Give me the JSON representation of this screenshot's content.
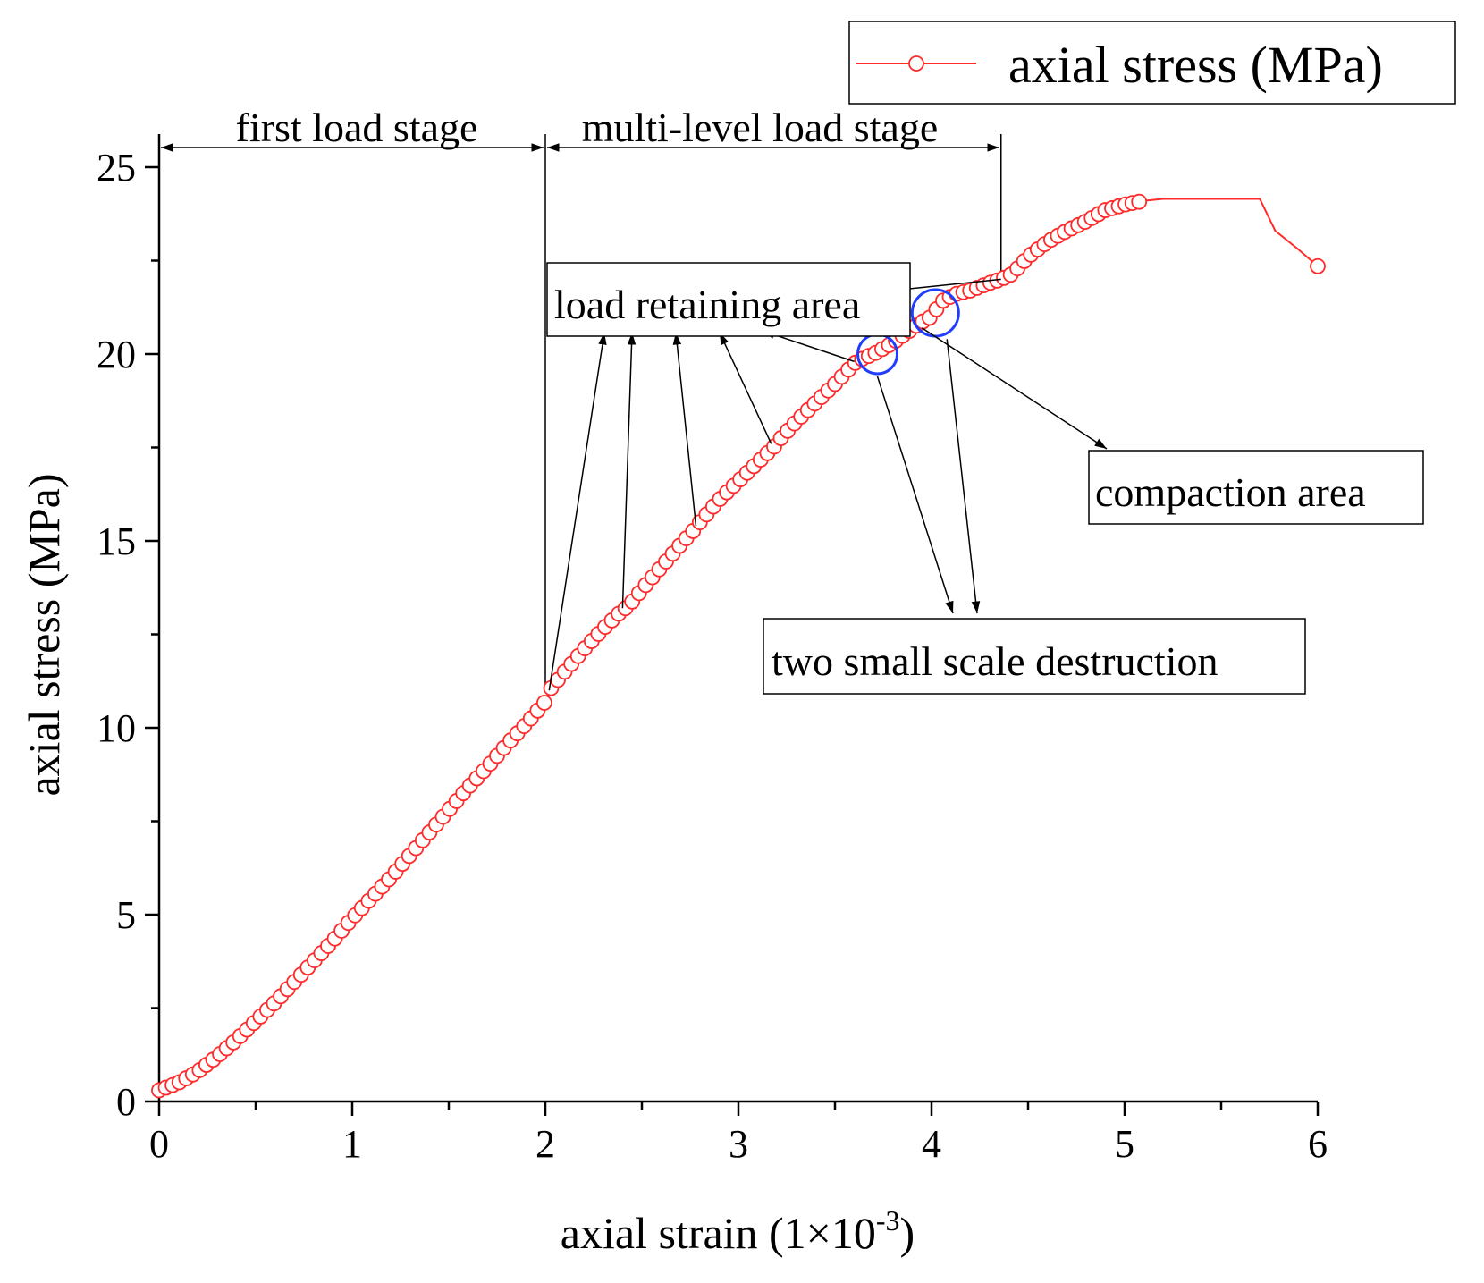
{
  "chart_data": {
    "type": "line",
    "title": "",
    "xlabel": "axial strain (1×10",
    "xlabel_exponent": "-3",
    "xlabel_close": ")",
    "ylabel": "axial stress (MPa)",
    "xlim": [
      0,
      6
    ],
    "ylim": [
      0,
      25
    ],
    "x_ticks": [
      "0",
      "1",
      "2",
      "3",
      "4",
      "5",
      "6"
    ],
    "y_ticks": [
      "0",
      "5",
      "10",
      "15",
      "20",
      "25"
    ],
    "grid": false,
    "legend_position": "top-right",
    "series": [
      {
        "name": "axial stress (MPa)",
        "color": "#ff2a2a",
        "marker": "open-circle",
        "x": [
          0.0,
          0.1,
          0.2,
          0.3,
          0.4,
          0.5,
          0.6,
          0.7,
          0.8,
          0.9,
          1.0,
          1.1,
          1.2,
          1.3,
          1.4,
          1.5,
          1.6,
          1.7,
          1.8,
          1.9,
          2.0,
          2.02,
          2.1,
          2.2,
          2.3,
          2.4,
          2.43,
          2.5,
          2.6,
          2.7,
          2.78,
          2.8,
          2.9,
          3.0,
          3.1,
          3.2,
          3.22,
          3.3,
          3.4,
          3.5,
          3.6,
          3.65,
          3.7,
          3.8,
          3.88,
          3.93,
          4.0,
          4.05,
          4.12,
          4.2,
          4.3,
          4.36,
          4.42,
          4.5,
          4.6,
          4.7,
          4.8,
          4.9,
          5.0,
          5.1,
          5.2,
          5.4,
          5.6,
          5.7,
          5.78,
          5.9,
          6.0
        ],
        "y": [
          0.3,
          0.5,
          0.8,
          1.2,
          1.65,
          2.15,
          2.65,
          3.2,
          3.75,
          4.3,
          4.9,
          5.45,
          6.0,
          6.6,
          7.2,
          7.8,
          8.4,
          8.95,
          9.55,
          10.1,
          10.7,
          11.0,
          11.5,
          12.1,
          12.65,
          13.15,
          13.25,
          13.7,
          14.3,
          14.9,
          15.35,
          15.5,
          16.1,
          16.6,
          17.1,
          17.6,
          17.75,
          18.2,
          18.7,
          19.2,
          19.75,
          19.9,
          20.0,
          20.3,
          20.6,
          20.8,
          21.0,
          21.4,
          21.6,
          21.7,
          21.9,
          22.0,
          22.15,
          22.6,
          23.0,
          23.3,
          23.55,
          23.85,
          24.0,
          24.1,
          24.15,
          24.15,
          24.15,
          24.15,
          23.3,
          22.8,
          22.35
        ]
      }
    ],
    "annotations": {
      "first_stage": "first load stage",
      "multi_stage": "multi-level load stage",
      "load_retaining": "load retaining area",
      "compaction": "compaction area",
      "destruction": "two small scale destruction"
    }
  }
}
